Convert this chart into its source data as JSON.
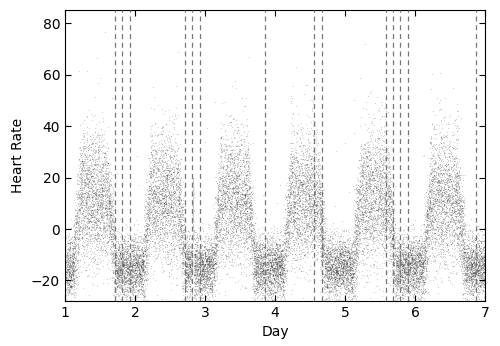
{
  "title": "",
  "xlabel": "Day",
  "ylabel": "Heart Rate",
  "xlim": [
    1,
    7
  ],
  "ylim": [
    -28,
    85
  ],
  "yticks": [
    -20,
    0,
    20,
    40,
    60,
    80
  ],
  "xticks": [
    1,
    2,
    3,
    4,
    5,
    6,
    7
  ],
  "vaping_events": [
    1.72,
    1.82,
    1.93,
    2.72,
    2.82,
    2.93,
    3.85,
    4.55,
    4.67,
    5.58,
    5.68,
    5.78,
    5.9,
    6.87
  ],
  "dot_color": "#000000",
  "dot_size": 0.8,
  "dot_alpha": 0.18,
  "vline_color": "#777777",
  "vline_lw": 0.9,
  "vline_dash": [
    4,
    3
  ],
  "n_points": 25000,
  "seed": 42,
  "background_color": "#ffffff"
}
